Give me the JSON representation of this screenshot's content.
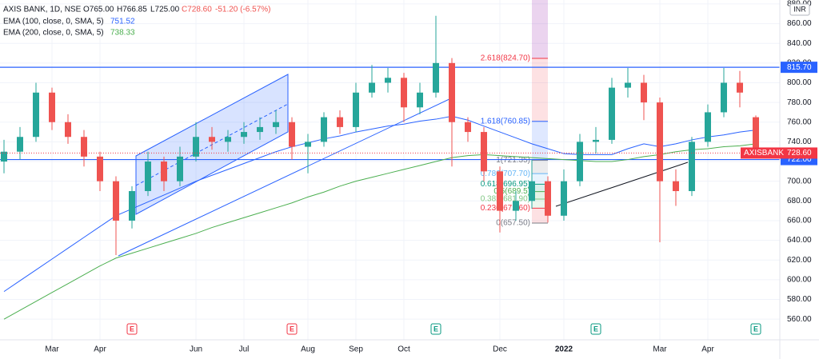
{
  "header": {
    "symbol": "AXIS BANK, 1D, NSE",
    "open": "O765.00",
    "high": "H766.85",
    "low": "L725.00",
    "close": "C728.60",
    "change": "-51.20 (-6.57%)",
    "currency": "INR"
  },
  "chart_data": {
    "type": "candlestick",
    "categories": [
      null,
      null,
      null,
      "Mar",
      null,
      null,
      "Apr",
      null,
      null,
      null,
      null,
      null,
      "Jun",
      null,
      null,
      "Jul",
      null,
      null,
      null,
      "Aug",
      null,
      null,
      "Sep",
      null,
      null,
      "Oct",
      null,
      null,
      null,
      null,
      null,
      "Dec",
      null,
      null,
      null,
      "2022",
      null,
      null,
      null,
      null,
      null,
      "Mar",
      null,
      null,
      "Apr",
      null,
      null,
      null
    ],
    "open": [
      720,
      730,
      745,
      790,
      760,
      745,
      725,
      700,
      660,
      690,
      720,
      700,
      725,
      745,
      740,
      745,
      750,
      755,
      760,
      735,
      740,
      765,
      755,
      790,
      800,
      805,
      775,
      790,
      820,
      760,
      750,
      710,
      670,
      680,
      700,
      665,
      700,
      740,
      742,
      795,
      800,
      780,
      700,
      690,
      740,
      770,
      800,
      765
    ],
    "high": [
      742,
      755,
      800,
      795,
      768,
      752,
      730,
      705,
      695,
      730,
      725,
      735,
      760,
      755,
      752,
      760,
      765,
      772,
      765,
      748,
      770,
      772,
      800,
      818,
      815,
      810,
      800,
      868,
      825,
      765,
      755,
      715,
      690,
      722,
      705,
      712,
      748,
      755,
      805,
      815,
      808,
      785,
      712,
      745,
      778,
      815,
      812,
      766.85
    ],
    "low": [
      708,
      722,
      740,
      752,
      738,
      715,
      690,
      625,
      652,
      685,
      690,
      695,
      720,
      732,
      730,
      738,
      742,
      748,
      722,
      708,
      735,
      748,
      750,
      785,
      790,
      760,
      768,
      785,
      715,
      740,
      700,
      648,
      660,
      672,
      658,
      660,
      695,
      728,
      738,
      785,
      762,
      638,
      675,
      685,
      735,
      765,
      775,
      725
    ],
    "close": [
      730,
      745,
      790,
      760,
      745,
      725,
      700,
      660,
      690,
      720,
      700,
      725,
      745,
      740,
      745,
      750,
      755,
      760,
      735,
      740,
      765,
      755,
      790,
      800,
      805,
      775,
      790,
      820,
      760,
      750,
      710,
      670,
      680,
      700,
      665,
      700,
      740,
      742,
      795,
      800,
      780,
      700,
      690,
      740,
      770,
      800,
      790,
      728.6
    ],
    "up_color": "#26a69a",
    "down_color": "#ef5350",
    "series": [
      {
        "name": "EMA (100, close, 0, SMA, 5)",
        "legend_value": "751.52",
        "color": "#2962ff",
        "values": [
          588,
          599,
          610,
          621,
          632,
          643,
          654,
          665,
          672,
          679,
          686,
          693,
          700,
          706,
          712,
          718,
          724,
          730,
          735,
          739,
          743,
          746,
          750,
          753,
          756,
          758,
          761,
          763,
          766,
          762,
          756,
          750,
          744,
          738,
          733,
          728,
          727,
          727,
          727,
          733,
          738,
          735,
          738,
          742,
          745,
          747,
          750,
          752
        ]
      },
      {
        "name": "EMA (200, close, 0, SMA, 5)",
        "legend_value": "738.33",
        "color": "#4caf50",
        "values": [
          560,
          569,
          578,
          587,
          596,
          605,
          614,
          622,
          627,
          632,
          637,
          642,
          647,
          653,
          658,
          663,
          668,
          673,
          678,
          684,
          689,
          695,
          700,
          704,
          708,
          712,
          716,
          720,
          724,
          726,
          727,
          726,
          725,
          724,
          723,
          722,
          721,
          720,
          720,
          722,
          725,
          727,
          730,
          732,
          733,
          735,
          736,
          738
        ]
      }
    ],
    "ylim": [
      539,
      884
    ],
    "yticks": [
      {
        "value": 560,
        "label": "560.00"
      },
      {
        "value": 580,
        "label": "580.00"
      },
      {
        "value": 600,
        "label": "600.00"
      },
      {
        "value": 620,
        "label": "620.00"
      },
      {
        "value": 640,
        "label": "640.00"
      },
      {
        "value": 660,
        "label": "660.00"
      },
      {
        "value": 680,
        "label": "680.00"
      },
      {
        "value": 700,
        "label": "700.00"
      },
      {
        "value": 720,
        "label": "720.00"
      },
      {
        "value": 740,
        "label": "740.00"
      },
      {
        "value": 760,
        "label": "760.00"
      },
      {
        "value": 780,
        "label": "780.00"
      },
      {
        "value": 800,
        "label": "800.00"
      },
      {
        "value": 820,
        "label": "820.00"
      },
      {
        "value": 840,
        "label": "840.00"
      },
      {
        "value": 860,
        "label": "860.00"
      },
      {
        "value": 880,
        "label": "880.00"
      }
    ],
    "hlines": [
      {
        "value": 815.7,
        "label": "815.70"
      },
      {
        "value": 722,
        "label": "722.00"
      }
    ],
    "hline_color": "#2962ff",
    "last_tag": {
      "name": "AXISBANK",
      "label": "728.60",
      "color": "#f23645"
    },
    "fib": {
      "start": 33,
      "end": 34,
      "levels": [
        {
          "value": 824.7,
          "label": "2.618(824.70)",
          "color": "#f23645"
        },
        {
          "value": 760.85,
          "label": "1.618(760.85)",
          "color": "#2962ff"
        },
        {
          "value": 721.35,
          "label": "1(721.35)",
          "color": "#787b86"
        },
        {
          "value": 707.7,
          "label": "0.786(707.70)",
          "color": "#64b5f6"
        },
        {
          "value": 696.95,
          "label": "0.618(696.95)",
          "color": "#089981"
        },
        {
          "value": 689.5,
          "label": "0.5(689.5)",
          "color": "#4caf50"
        },
        {
          "value": 681.9,
          "label": "0.382(681.90)",
          "color": "#81c784"
        },
        {
          "value": 672.6,
          "label": "0.236(672.60)",
          "color": "#f23645"
        },
        {
          "value": 657.5,
          "label": "0(657.50)",
          "color": "#787b86"
        }
      ]
    },
    "events": [
      {
        "label": "E",
        "at": 8,
        "color": "#f23645"
      },
      {
        "label": "E",
        "at": 18,
        "color": "#f23645"
      },
      {
        "label": "E",
        "at": 27,
        "color": "#089981"
      },
      {
        "label": "E",
        "at": 37,
        "color": "#089981"
      },
      {
        "label": "E",
        "at": 47,
        "color": "#089981"
      }
    ]
  }
}
